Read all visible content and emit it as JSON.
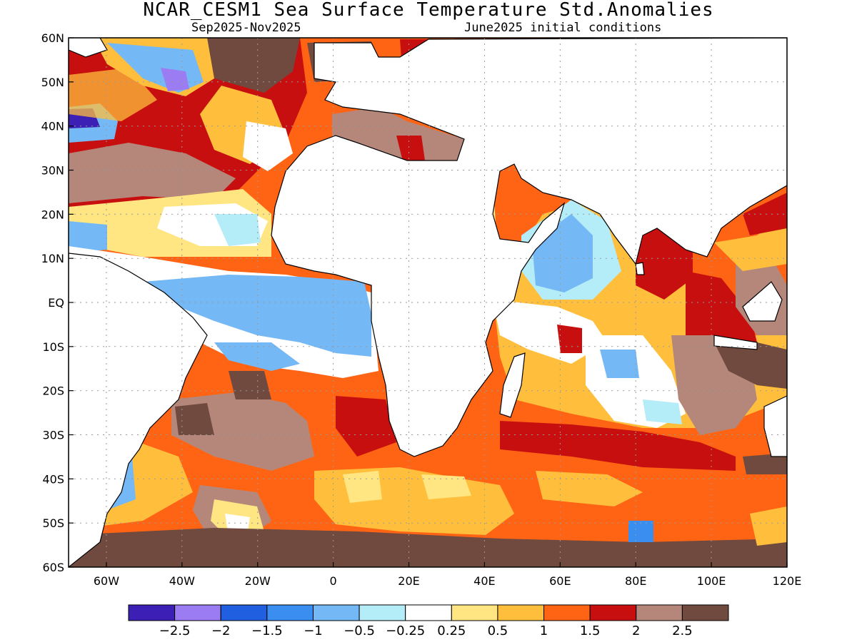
{
  "title": "NCAR_CESM1 Sea Surface Temperature Std.Anomalies",
  "subtitle_left": "Sep2025-Nov2025",
  "subtitle_right": "June2025 initial conditions",
  "map": {
    "lat_labels": [
      "60N",
      "50N",
      "40N",
      "30N",
      "20N",
      "10N",
      "EQ",
      "10S",
      "20S",
      "30S",
      "40S",
      "50S",
      "60S"
    ],
    "lon_labels": [
      "60W",
      "40W",
      "20W",
      "0",
      "20E",
      "40E",
      "60E",
      "80E",
      "100E",
      "120E"
    ],
    "lon_range": [
      -70,
      120
    ],
    "lat_range": [
      -60,
      60
    ],
    "grid": true
  },
  "colorbar": {
    "colors": [
      "#3c1fb4",
      "#9c7cf3",
      "#1f5fe0",
      "#3a8ef0",
      "#74b8f6",
      "#b4ecf8",
      "#ffffff",
      "#ffe682",
      "#ffbf3c",
      "#ff6414",
      "#c80f0f",
      "#b4877a",
      "#704a3e"
    ],
    "labels": [
      "−2.5",
      "−2",
      "−1.5",
      "−1",
      "−0.5",
      "−0.25",
      "0.25",
      "0.5",
      "1",
      "1.5",
      "2",
      "2.5"
    ]
  },
  "colors": {
    "land": "#ffffff",
    "coast": "#000000",
    "grid": "#b0b0b0"
  }
}
